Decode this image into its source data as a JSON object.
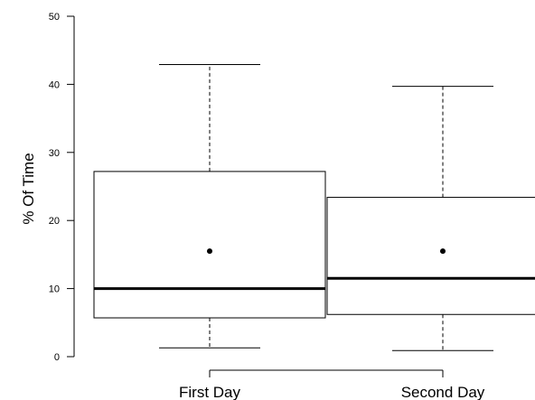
{
  "chart_data": {
    "type": "box",
    "title": "",
    "xlabel": "",
    "ylabel": "% Of Time",
    "ylim": [
      0,
      50
    ],
    "yticks": [
      0,
      10,
      20,
      30,
      40,
      50
    ],
    "categories": [
      "First Day",
      "Second Day"
    ],
    "boxes": [
      {
        "category": "First Day",
        "whisker_low": 1.3,
        "q1": 5.7,
        "median": 10.0,
        "q3": 27.2,
        "whisker_high": 42.9,
        "mean": 15.5
      },
      {
        "category": "Second Day",
        "whisker_low": 0.9,
        "q1": 6.2,
        "median": 11.5,
        "q3": 23.4,
        "whisker_high": 39.7,
        "mean": 15.5
      }
    ],
    "grid": false,
    "legend": "none"
  }
}
